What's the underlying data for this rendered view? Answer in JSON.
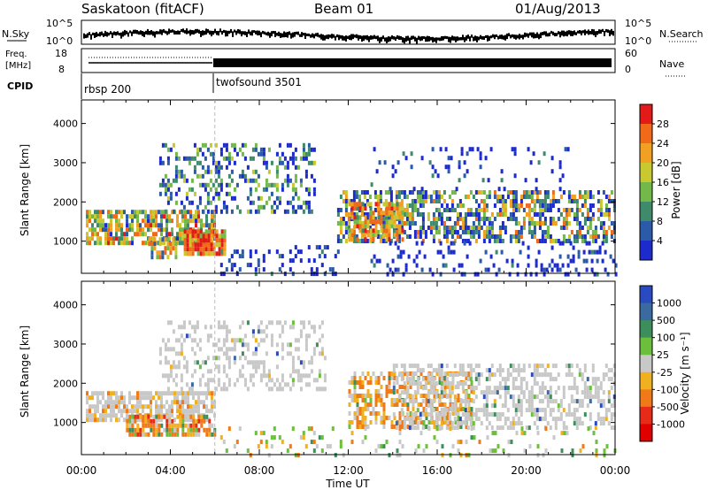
{
  "header": {
    "station": "Saskatoon (fitACF)",
    "beam": "Beam 01",
    "date": "01/Aug/2013"
  },
  "noise_panel": {
    "left_label": "N.Sky",
    "right_label": "N.Search",
    "left_ticks": [
      "10^5",
      "10^0"
    ],
    "right_ticks": [
      "10^5",
      "10^0"
    ]
  },
  "freq_panel": {
    "left_label_1": "Freq.",
    "left_label_2": "[MHz]",
    "left_ticks": [
      "18",
      "8"
    ],
    "right_ticks": [
      "60",
      "0"
    ],
    "right_label": "Nave"
  },
  "cpid_panel": {
    "label": "CPID",
    "programs": [
      "rbsp 200",
      "twofsound 3501"
    ]
  },
  "chart_data": [
    {
      "type": "heatmap",
      "name": "power",
      "ylabel": "Slant Range [km]",
      "yticks": [
        1000,
        2000,
        3000,
        4000
      ],
      "ylim": [
        180,
        4600
      ],
      "xlim": [
        0,
        24
      ],
      "colorbar_label": "Power [dB]",
      "colorbar_ticks": [
        "4",
        "8",
        "12",
        "16",
        "20",
        "24",
        "28"
      ],
      "colors": [
        "#1d2bcc",
        "#2a5aa8",
        "#3f8a6a",
        "#72b94a",
        "#c8c830",
        "#f2a022",
        "#f06a1a",
        "#e21a1a"
      ]
    },
    {
      "type": "heatmap",
      "name": "velocity",
      "ylabel": "Slant Range [km]",
      "yticks": [
        1000,
        2000,
        3000,
        4000
      ],
      "ylim": [
        180,
        4600
      ],
      "xlim": [
        0,
        24
      ],
      "xlabel": "Time UT",
      "xticks": [
        "00:00",
        "04:00",
        "08:00",
        "12:00",
        "16:00",
        "20:00",
        "00:00"
      ],
      "colorbar_label": "Velocity [m s⁻¹]",
      "colorbar_ticks": [
        "1000",
        "500",
        "100",
        "25",
        "-25",
        "-100",
        "-500",
        "-1000"
      ],
      "colors": [
        "#2a4abf",
        "#3a6aa0",
        "#3c8f5a",
        "#6cbf3a",
        "#c8c8c8",
        "#f0b020",
        "#f07a18",
        "#e82a18",
        "#e00000"
      ]
    }
  ]
}
